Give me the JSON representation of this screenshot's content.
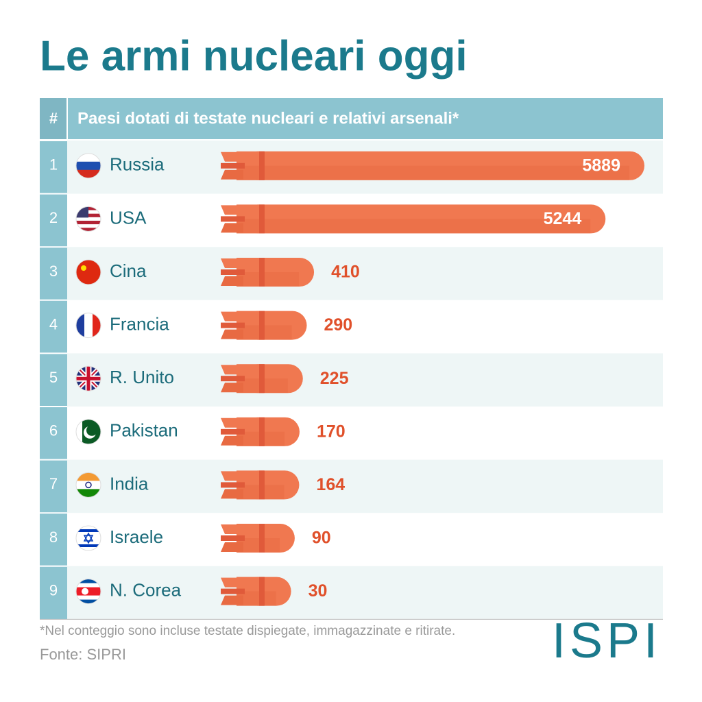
{
  "chart_data": {
    "type": "bar",
    "title": "Le armi nucleari oggi",
    "rank_header": "#",
    "subtitle": "Paesi dotati di testate nucleari e relativi arsenali*",
    "ranks": [
      1,
      2,
      3,
      4,
      5,
      6,
      7,
      8,
      9
    ],
    "categories": [
      "Russia",
      "USA",
      "Cina",
      "Francia",
      "R. Unito",
      "Pakistan",
      "India",
      "Israele",
      "N. Corea"
    ],
    "values": [
      5889,
      5244,
      410,
      290,
      225,
      170,
      164,
      90,
      30
    ],
    "color": "#f07850",
    "footnote": "*Nel conteggio sono incluse testate dispiegate, immagazzinate e ritirate.",
    "source": "Fonte: SIPRI"
  },
  "logo": "ISPI"
}
